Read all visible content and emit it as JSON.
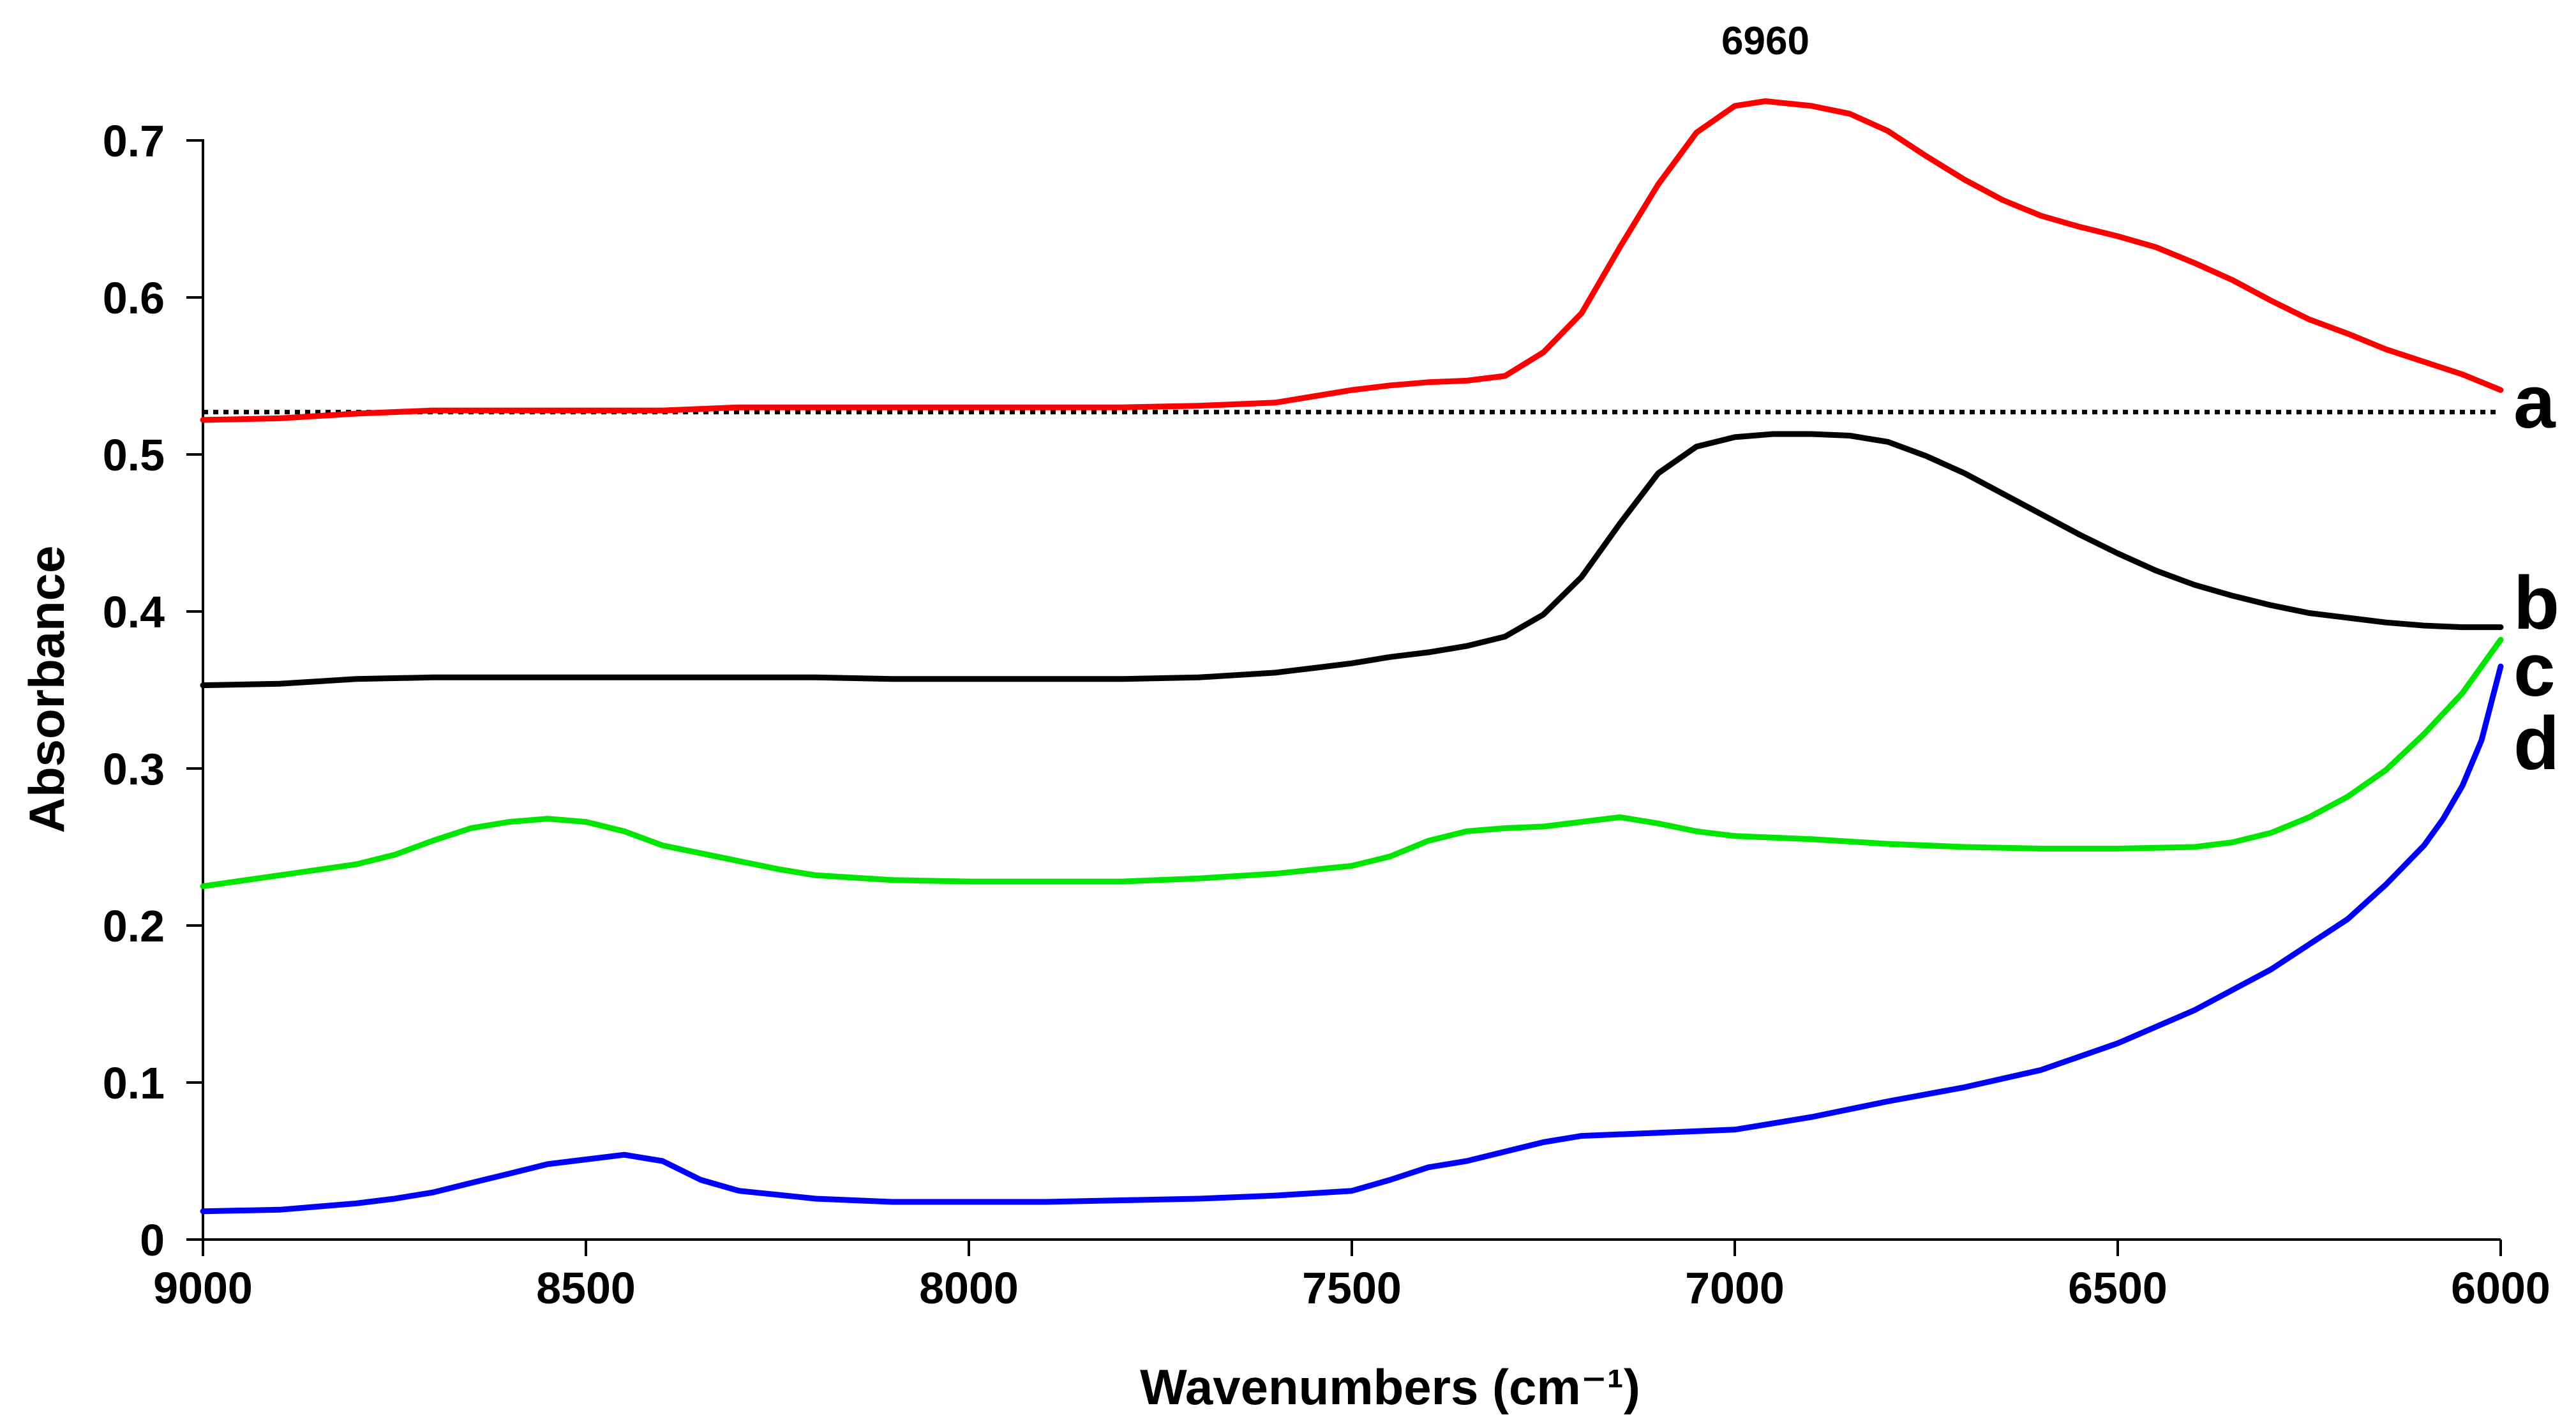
{
  "chart_data": {
    "type": "line",
    "title": "",
    "xlabel": "Wavenumbers (cm⁻¹)",
    "ylabel": "Absorbance",
    "xlim": [
      9000,
      6000
    ],
    "x_reversed": true,
    "ylim": [
      0,
      0.7
    ],
    "xticks": [
      "9000",
      "8500",
      "8000",
      "7500",
      "7000",
      "6500",
      "6000"
    ],
    "yticks": [
      "0",
      "0.1",
      "0.2",
      "0.3",
      "0.4",
      "0.5",
      "0.6",
      "0.7"
    ],
    "grid": false,
    "legend": "none",
    "annotations": [
      {
        "text": "6960",
        "x": 6960,
        "y": 0.725
      }
    ],
    "reference_line": {
      "style": "dotted",
      "color": "#000000",
      "y": 0.527
    },
    "series": [
      {
        "name": "a",
        "color": "#ff0000",
        "x": [
          9000,
          8900,
          8800,
          8700,
          8600,
          8500,
          8400,
          8300,
          8200,
          8100,
          8000,
          7900,
          7800,
          7700,
          7600,
          7550,
          7500,
          7450,
          7400,
          7350,
          7300,
          7250,
          7200,
          7150,
          7100,
          7050,
          7000,
          6960,
          6900,
          6850,
          6800,
          6750,
          6700,
          6650,
          6600,
          6550,
          6500,
          6450,
          6400,
          6350,
          6300,
          6250,
          6200,
          6150,
          6100,
          6050,
          6000
        ],
        "y": [
          0.522,
          0.523,
          0.526,
          0.528,
          0.528,
          0.528,
          0.528,
          0.53,
          0.53,
          0.53,
          0.53,
          0.53,
          0.53,
          0.531,
          0.533,
          0.537,
          0.541,
          0.544,
          0.546,
          0.547,
          0.55,
          0.565,
          0.59,
          0.632,
          0.672,
          0.705,
          0.722,
          0.725,
          0.722,
          0.717,
          0.706,
          0.69,
          0.675,
          0.662,
          0.652,
          0.645,
          0.639,
          0.632,
          0.622,
          0.611,
          0.598,
          0.586,
          0.577,
          0.567,
          0.559,
          0.551,
          0.541
        ]
      },
      {
        "name": "b",
        "color": "#000000",
        "x": [
          9000,
          8900,
          8800,
          8700,
          8600,
          8500,
          8400,
          8300,
          8200,
          8100,
          8000,
          7900,
          7800,
          7700,
          7600,
          7550,
          7500,
          7450,
          7400,
          7350,
          7300,
          7250,
          7200,
          7150,
          7100,
          7050,
          7000,
          6950,
          6900,
          6850,
          6800,
          6750,
          6700,
          6650,
          6600,
          6550,
          6500,
          6450,
          6400,
          6350,
          6300,
          6250,
          6200,
          6150,
          6100,
          6050,
          6000
        ],
        "y": [
          0.353,
          0.354,
          0.357,
          0.358,
          0.358,
          0.358,
          0.358,
          0.358,
          0.358,
          0.357,
          0.357,
          0.357,
          0.357,
          0.358,
          0.361,
          0.364,
          0.367,
          0.371,
          0.374,
          0.378,
          0.384,
          0.398,
          0.422,
          0.456,
          0.488,
          0.505,
          0.511,
          0.513,
          0.513,
          0.512,
          0.508,
          0.499,
          0.488,
          0.475,
          0.462,
          0.449,
          0.437,
          0.426,
          0.417,
          0.41,
          0.404,
          0.399,
          0.396,
          0.393,
          0.391,
          0.39,
          0.39
        ]
      },
      {
        "name": "c",
        "color": "#00e600",
        "x": [
          9000,
          8900,
          8800,
          8750,
          8700,
          8650,
          8600,
          8550,
          8500,
          8450,
          8400,
          8350,
          8300,
          8250,
          8200,
          8100,
          8000,
          7900,
          7800,
          7700,
          7600,
          7500,
          7450,
          7400,
          7350,
          7300,
          7250,
          7200,
          7150,
          7100,
          7050,
          7000,
          6950,
          6900,
          6800,
          6700,
          6600,
          6500,
          6400,
          6350,
          6300,
          6250,
          6200,
          6150,
          6100,
          6050,
          6000
        ],
        "y": [
          0.225,
          0.232,
          0.239,
          0.245,
          0.254,
          0.262,
          0.266,
          0.268,
          0.266,
          0.26,
          0.251,
          0.246,
          0.241,
          0.236,
          0.232,
          0.229,
          0.228,
          0.228,
          0.228,
          0.23,
          0.233,
          0.238,
          0.244,
          0.254,
          0.26,
          0.262,
          0.263,
          0.266,
          0.269,
          0.265,
          0.26,
          0.257,
          0.256,
          0.255,
          0.252,
          0.25,
          0.249,
          0.249,
          0.25,
          0.253,
          0.259,
          0.269,
          0.282,
          0.299,
          0.322,
          0.348,
          0.382
        ]
      },
      {
        "name": "d",
        "color": "#0000ff",
        "x": [
          9000,
          8900,
          8800,
          8750,
          8700,
          8650,
          8600,
          8550,
          8500,
          8450,
          8400,
          8350,
          8300,
          8200,
          8100,
          8000,
          7900,
          7800,
          7700,
          7600,
          7500,
          7450,
          7400,
          7350,
          7300,
          7250,
          7200,
          7100,
          7000,
          6900,
          6800,
          6700,
          6600,
          6500,
          6400,
          6300,
          6250,
          6200,
          6150,
          6100,
          6075,
          6050,
          6025,
          6000
        ],
        "y": [
          0.018,
          0.019,
          0.023,
          0.026,
          0.03,
          0.036,
          0.042,
          0.048,
          0.051,
          0.054,
          0.05,
          0.038,
          0.031,
          0.026,
          0.024,
          0.024,
          0.024,
          0.025,
          0.026,
          0.028,
          0.031,
          0.038,
          0.046,
          0.05,
          0.056,
          0.062,
          0.066,
          0.068,
          0.07,
          0.078,
          0.088,
          0.097,
          0.108,
          0.125,
          0.146,
          0.172,
          0.188,
          0.204,
          0.226,
          0.251,
          0.268,
          0.289,
          0.318,
          0.365
        ]
      }
    ]
  }
}
